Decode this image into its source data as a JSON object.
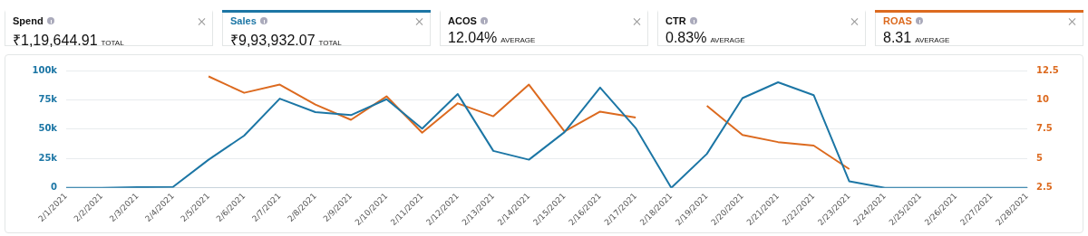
{
  "chart_data": {
    "type": "line",
    "categories": [
      "2/1/2021",
      "2/2/2021",
      "2/3/2021",
      "2/4/2021",
      "2/5/2021",
      "2/6/2021",
      "2/7/2021",
      "2/8/2021",
      "2/9/2021",
      "2/10/2021",
      "2/11/2021",
      "2/12/2021",
      "2/13/2021",
      "2/14/2021",
      "2/15/2021",
      "2/16/2021",
      "2/17/2021",
      "2/18/2021",
      "2/19/2021",
      "2/20/2021",
      "2/21/2021",
      "2/22/2021",
      "2/23/2021",
      "2/24/2021",
      "2/25/2021",
      "2/26/2021",
      "2/27/2021",
      "2/28/2021"
    ],
    "series": [
      {
        "name": "Sales",
        "color": "#1c76a5",
        "values": [
          0,
          0,
          500,
          800,
          24000,
          44500,
          76000,
          64500,
          62000,
          75500,
          50500,
          80000,
          31500,
          24000,
          47500,
          85500,
          51000,
          0,
          29000,
          76500,
          90000,
          79000,
          5500,
          0,
          0,
          0,
          0,
          0
        ]
      },
      {
        "name": "ROAS",
        "color": "#dc6a1f",
        "axis": "y2",
        "values": [
          null,
          null,
          null,
          null,
          12.0,
          10.6,
          11.3,
          9.6,
          8.3,
          10.3,
          7.2,
          9.7,
          8.6,
          11.3,
          7.3,
          9.0,
          8.5,
          null,
          9.5,
          7.0,
          6.4,
          6.1,
          4.1,
          null,
          null,
          null,
          null,
          null
        ]
      }
    ],
    "ylim": [
      0,
      100000
    ],
    "yticks": [
      {
        "value": 0,
        "label": "0"
      },
      {
        "value": 25000,
        "label": "25k"
      },
      {
        "value": 50000,
        "label": "50k"
      },
      {
        "value": 75000,
        "label": "75k"
      },
      {
        "value": 100000,
        "label": "100k"
      }
    ],
    "y2lim": [
      2.5,
      12.5
    ],
    "y2ticks": [
      2.5,
      5,
      7.5,
      10,
      12.5
    ],
    "grid": "y",
    "legend": "top",
    "marker": "none",
    "line_style": "solid",
    "annotations": [
      "Spend",
      "₹1,19,644.91 TOTAL",
      "₹9,93,932.07 TOTAL",
      "ACOS",
      "12.04% AVERAGE",
      "CTR",
      "0.83% AVERAGE",
      "8.31 AVERAGE"
    ]
  }
}
